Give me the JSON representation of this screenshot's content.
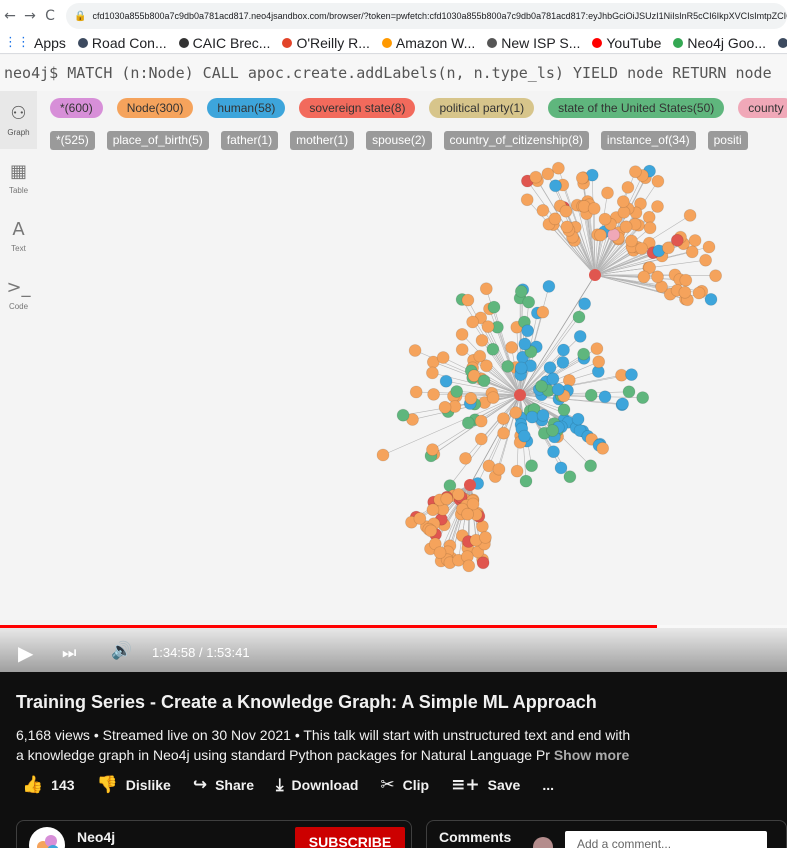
{
  "browser": {
    "back": "←",
    "forward": "→",
    "reload": "C",
    "url": "cfd1030a855b800a7c9db0a781acd817.neo4jsandbox.com/browser/?token=pwfetch:cfd1030a855b800a7c9db0a781acd817:eyJhbGciOiJSUzI1NiIsInR5cCI6IkpXVCIsImtpZCI6IlFU",
    "bookmarks": [
      {
        "label": "Apps",
        "color": "#1a73e8"
      },
      {
        "label": "Road Con...",
        "color": "#3c4a5f"
      },
      {
        "label": "CAIC Brec...",
        "color": "#333333"
      },
      {
        "label": "O'Reilly R...",
        "color": "#e24329"
      },
      {
        "label": "Amazon W...",
        "color": "#ff9900"
      },
      {
        "label": "New ISP S...",
        "color": "#555555"
      },
      {
        "label": "YouTube",
        "color": "#ff0000"
      },
      {
        "label": "Neo4j Goo...",
        "color": "#34a853"
      },
      {
        "label": "The Neo4",
        "color": "#3c4a5f"
      }
    ]
  },
  "neo4j": {
    "command": "neo4j$ MATCH (n:Node) CALL apoc.create.addLabels(n, n.type_ls) YIELD node RETURN node",
    "sidebar": [
      {
        "label": "Graph",
        "icon": "⚇"
      },
      {
        "label": "Table",
        "icon": "▦"
      },
      {
        "label": "Text",
        "icon": "A"
      },
      {
        "label": "Code",
        "icon": ">_"
      }
    ],
    "labels": [
      {
        "text": "*(600)",
        "color": "#d78fd8"
      },
      {
        "text": "Node(300)",
        "color": "#f5a35c"
      },
      {
        "text": "human(58)",
        "color": "#3da5db"
      },
      {
        "text": "sovereign state(8)",
        "color": "#f26a5c"
      },
      {
        "text": "political party(1)",
        "color": "#d7c58b"
      },
      {
        "text": "state of the United States(50)",
        "color": "#5fb67d"
      },
      {
        "text": "county",
        "color": "#f0a8b8"
      }
    ],
    "relationships": [
      {
        "text": "*(525)"
      },
      {
        "text": "place_of_birth(5)"
      },
      {
        "text": "father(1)"
      },
      {
        "text": "mother(1)"
      },
      {
        "text": "spouse(2)"
      },
      {
        "text": "country_of_citizenship(8)"
      },
      {
        "text": "instance_of(34)"
      },
      {
        "text": "positi"
      }
    ],
    "node_colors": {
      "node": "#f5a35c",
      "human": "#3da5db",
      "state": "#5fb67d",
      "sovereign": "#e0564f",
      "county": "#f0a8b8",
      "party": "#d7c58b"
    }
  },
  "player": {
    "time": "1:34:58 / 1:53:41",
    "progress_fraction": 0.835,
    "play_icon": "▶",
    "next_icon": "⏭",
    "volume_icon": "🔊"
  },
  "video": {
    "title": "Training Series - Create a Knowledge Graph: A Simple ML Approach",
    "desc_line1": "6,168 views • Streamed live on 30 Nov 2021 • This talk will start with unstructured text and end with",
    "desc_line2": "a knowledge graph in Neo4j using standard Python packages for Natural Language Pr",
    "show_more": "Show more"
  },
  "actions": {
    "like_count": "143",
    "dislike": "Dislike",
    "share": "Share",
    "download": "Download",
    "clip": "Clip",
    "save": "Save",
    "more": "..."
  },
  "channel": {
    "name": "Neo4j",
    "subscribe": "SUBSCRIBE"
  },
  "comments": {
    "title": "Comments",
    "placeholder": "Add a comment..."
  }
}
